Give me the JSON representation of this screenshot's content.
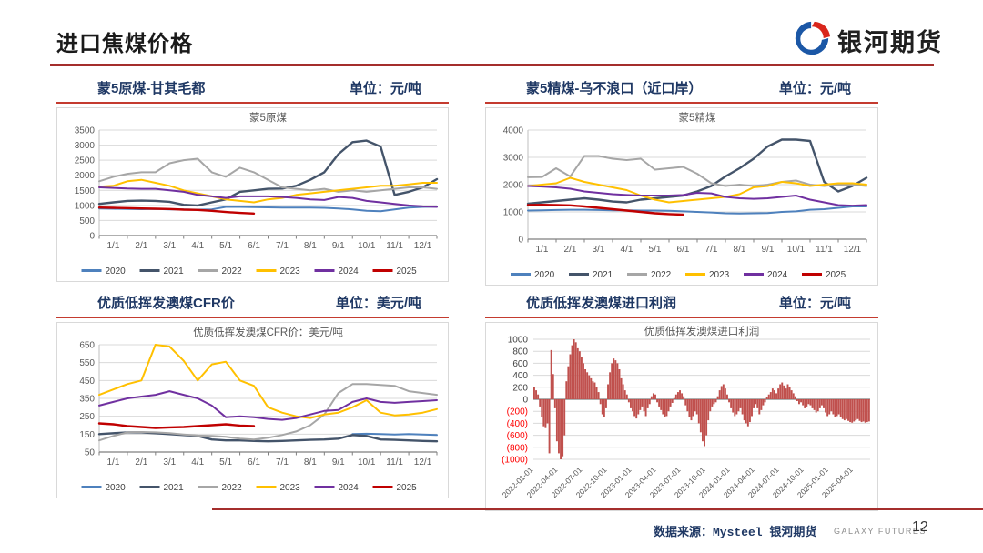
{
  "page": {
    "title": "进口焦煤价格",
    "logo_text": "银河期货",
    "footer_source": "数据来源：Mysteel 银河期货",
    "footer_brand": "GALAXY FUTURES",
    "page_number": "12"
  },
  "colors": {
    "title_rule": "#A42E2C",
    "header_text": "#1F3864",
    "header_underline": "#C43B2F",
    "grid": "#D9D9D9",
    "axis": "#7F7F7F",
    "tick_text": "#595959",
    "negative_label": "#FF0000",
    "bar": "#C0504D",
    "logo_blue": "#1B57A6",
    "logo_red": "#D9261C"
  },
  "charts": [
    {
      "header_title": "蒙5原煤-甘其毛都",
      "header_unit": "单位：元/吨",
      "chart_data": {
        "type": "line",
        "title": "蒙5原煤",
        "ylim": [
          0,
          3500
        ],
        "ytick_step": 500,
        "x": [
          "1/1",
          "1/15",
          "2/1",
          "2/15",
          "3/1",
          "3/15",
          "4/1",
          "4/15",
          "5/1",
          "5/15",
          "6/1",
          "6/15",
          "7/1",
          "7/15",
          "8/1",
          "8/15",
          "9/1",
          "9/15",
          "10/1",
          "10/15",
          "11/1",
          "11/15",
          "12/1",
          "12/15",
          "12/31"
        ],
        "x_ticks": [
          "1/1",
          "2/1",
          "3/1",
          "4/1",
          "5/1",
          "6/1",
          "7/1",
          "8/1",
          "9/1",
          "10/1",
          "11/1",
          "12/1"
        ],
        "series": [
          {
            "name": "2020",
            "color": "#4E81BD",
            "values": [
              900,
              890,
              880,
              875,
              880,
              870,
              865,
              860,
              870,
              950,
              950,
              945,
              935,
              930,
              930,
              925,
              920,
              900,
              870,
              820,
              810,
              870,
              930,
              950,
              960
            ]
          },
          {
            "name": "2021",
            "color": "#44546A",
            "values": [
              1050,
              1100,
              1150,
              1160,
              1150,
              1120,
              1020,
              1000,
              1100,
              1200,
              1450,
              1500,
              1550,
              1560,
              1650,
              1850,
              2100,
              2700,
              3100,
              3150,
              2950,
              1350,
              1450,
              1600,
              1870
            ]
          },
          {
            "name": "2022",
            "color": "#A6A6A6",
            "values": [
              1800,
              1950,
              2050,
              2100,
              2100,
              2400,
              2500,
              2550,
              2100,
              1950,
              2250,
              2100,
              1850,
              1600,
              1550,
              1500,
              1550,
              1450,
              1500,
              1450,
              1500,
              1550,
              1600,
              1600,
              1550
            ]
          },
          {
            "name": "2023",
            "color": "#FFC000",
            "values": [
              1620,
              1650,
              1800,
              1850,
              1750,
              1650,
              1500,
              1400,
              1300,
              1200,
              1150,
              1100,
              1200,
              1250,
              1350,
              1400,
              1450,
              1500,
              1550,
              1600,
              1650,
              1650,
              1700,
              1750,
              1750
            ]
          },
          {
            "name": "2024",
            "color": "#7030A0",
            "values": [
              1600,
              1580,
              1560,
              1550,
              1550,
              1500,
              1450,
              1350,
              1300,
              1250,
              1300,
              1300,
              1300,
              1280,
              1250,
              1200,
              1180,
              1280,
              1250,
              1150,
              1100,
              1050,
              1000,
              970,
              950
            ]
          },
          {
            "name": "2025",
            "color": "#C00000",
            "values": [
              930,
              920,
              910,
              900,
              890,
              880,
              860,
              850,
              820,
              780,
              750,
              730,
              null,
              null,
              null,
              null,
              null,
              null,
              null,
              null,
              null,
              null,
              null,
              null,
              null
            ]
          }
        ]
      }
    },
    {
      "header_title": "蒙5精煤-乌不浪口（近口岸）",
      "header_unit": "单位：元/吨",
      "chart_data": {
        "type": "line",
        "title": "蒙5精煤",
        "ylim": [
          0,
          4000
        ],
        "ytick_step": 1000,
        "x": [
          "1/1",
          "1/15",
          "2/1",
          "2/15",
          "3/1",
          "3/15",
          "4/1",
          "4/15",
          "5/1",
          "5/15",
          "6/1",
          "6/15",
          "7/1",
          "7/15",
          "8/1",
          "8/15",
          "9/1",
          "9/15",
          "10/1",
          "10/15",
          "11/1",
          "11/15",
          "12/1",
          "12/15",
          "12/31"
        ],
        "x_ticks": [
          "1/1",
          "2/1",
          "3/1",
          "4/1",
          "5/1",
          "6/1",
          "7/1",
          "8/1",
          "9/1",
          "10/1",
          "11/1",
          "12/1"
        ],
        "series": [
          {
            "name": "2020",
            "color": "#4E81BD",
            "values": [
              1050,
              1060,
              1070,
              1080,
              1080,
              1070,
              1060,
              1060,
              1050,
              1050,
              1040,
              1020,
              1000,
              980,
              950,
              940,
              950,
              960,
              1000,
              1020,
              1080,
              1100,
              1150,
              1200,
              1200
            ]
          },
          {
            "name": "2021",
            "color": "#44546A",
            "values": [
              1300,
              1350,
              1400,
              1450,
              1500,
              1450,
              1380,
              1350,
              1450,
              1500,
              1550,
              1600,
              1750,
              1950,
              2300,
              2600,
              2950,
              3400,
              3650,
              3650,
              3600,
              2100,
              1750,
              1950,
              2250
            ]
          },
          {
            "name": "2022",
            "color": "#A6A6A6",
            "values": [
              2270,
              2280,
              2600,
              2300,
              3050,
              3050,
              2950,
              2900,
              2950,
              2550,
              2600,
              2650,
              2400,
              2050,
              1950,
              2000,
              1950,
              2000,
              2100,
              2150,
              2000,
              1950,
              2000,
              2000,
              1950
            ]
          },
          {
            "name": "2023",
            "color": "#FFC000",
            "values": [
              1950,
              2000,
              2050,
              2250,
              2100,
              2000,
              1900,
              1800,
              1600,
              1450,
              1350,
              1400,
              1450,
              1500,
              1550,
              1650,
              1900,
              1950,
              2100,
              2050,
              1950,
              2000,
              2050,
              2050,
              2000
            ]
          },
          {
            "name": "2024",
            "color": "#7030A0",
            "values": [
              1950,
              1930,
              1900,
              1850,
              1750,
              1700,
              1650,
              1620,
              1600,
              1600,
              1600,
              1620,
              1700,
              1680,
              1550,
              1500,
              1480,
              1500,
              1550,
              1600,
              1450,
              1350,
              1250,
              1230,
              1250
            ]
          },
          {
            "name": "2025",
            "color": "#C00000",
            "values": [
              1250,
              1260,
              1250,
              1240,
              1200,
              1150,
              1100,
              1050,
              1000,
              950,
              920,
              900,
              null,
              null,
              null,
              null,
              null,
              null,
              null,
              null,
              null,
              null,
              null,
              null,
              null
            ]
          }
        ]
      }
    },
    {
      "header_title": "优质低挥发澳煤CFR价",
      "header_unit": "单位：美元/吨",
      "chart_data": {
        "type": "line",
        "title": "优质低挥发澳煤CFR价：美元/吨",
        "ylim": [
          50,
          650
        ],
        "ytick_step": 100,
        "x": [
          "1/1",
          "1/15",
          "2/1",
          "2/15",
          "3/1",
          "3/15",
          "4/1",
          "4/15",
          "5/1",
          "5/15",
          "6/1",
          "6/15",
          "7/1",
          "7/15",
          "8/1",
          "8/15",
          "9/1",
          "9/15",
          "10/1",
          "10/15",
          "11/1",
          "11/15",
          "12/1",
          "12/15",
          "12/31"
        ],
        "x_ticks": [
          "1/1",
          "2/1",
          "3/1",
          "4/1",
          "5/1",
          "6/1",
          "7/1",
          "8/1",
          "9/1",
          "10/1",
          "11/1",
          "12/1"
        ],
        "series": [
          {
            "name": "2020",
            "color": "#4E81BD",
            "values": [
              null,
              null,
              null,
              null,
              null,
              null,
              null,
              null,
              null,
              null,
              null,
              null,
              null,
              null,
              null,
              null,
              null,
              null,
              150,
              152,
              150,
              148,
              150,
              148,
              145
            ]
          },
          {
            "name": "2021",
            "color": "#44546A",
            "values": [
              150,
              155,
              160,
              160,
              155,
              150,
              145,
              140,
              120,
              115,
              115,
              112,
              110,
              112,
              115,
              118,
              120,
              125,
              145,
              140,
              120,
              118,
              115,
              112,
              110
            ]
          },
          {
            "name": "2022",
            "color": "#A6A6A6",
            "values": [
              115,
              140,
              160,
              162,
              160,
              155,
              148,
              142,
              140,
              135,
              125,
              120,
              130,
              145,
              165,
              200,
              260,
              380,
              430,
              430,
              425,
              420,
              390,
              380,
              370
            ]
          },
          {
            "name": "2023",
            "color": "#FFC000",
            "values": [
              370,
              400,
              430,
              450,
              650,
              640,
              560,
              450,
              540,
              555,
              450,
              420,
              300,
              270,
              250,
              240,
              260,
              270,
              300,
              340,
              270,
              255,
              260,
              270,
              290
            ]
          },
          {
            "name": "2024",
            "color": "#7030A0",
            "values": [
              310,
              330,
              350,
              360,
              370,
              390,
              370,
              350,
              310,
              245,
              250,
              245,
              235,
              230,
              240,
              260,
              280,
              285,
              330,
              350,
              330,
              325,
              330,
              335,
              340
            ]
          },
          {
            "name": "2025",
            "color": "#C00000",
            "values": [
              210,
              205,
              195,
              190,
              185,
              188,
              190,
              195,
              200,
              205,
              198,
              195,
              null,
              null,
              null,
              null,
              null,
              null,
              null,
              null,
              null,
              null,
              null,
              null,
              null
            ]
          }
        ]
      }
    },
    {
      "header_title": "优质低挥发澳煤进口利润",
      "header_unit": "单位：元/吨",
      "chart_data": {
        "type": "bar",
        "title": "优质低挥发澳煤进口利润",
        "ylim": [
          -1000,
          1000
        ],
        "ytick_step": 200,
        "bar_color": "#C0504D",
        "ticks_every": 13,
        "x_tick_labels": [
          "2022-01-01",
          "2022-04-01",
          "2022-07-01",
          "2022-10-01",
          "2023-01-01",
          "2023-04-01",
          "2023-07-01",
          "2023-10-01",
          "2024-01-01",
          "2024-04-01",
          "2024-07-01",
          "2024-10-01",
          "2025-01-01",
          "2025-04-01"
        ],
        "values": [
          200,
          150,
          80,
          -120,
          -300,
          -450,
          -480,
          -400,
          -900,
          820,
          420,
          -150,
          -700,
          -900,
          -1000,
          -950,
          -600,
          300,
          550,
          750,
          900,
          1000,
          950,
          850,
          800,
          700,
          600,
          500,
          450,
          400,
          350,
          300,
          280,
          200,
          120,
          -80,
          -250,
          -300,
          -150,
          250,
          450,
          600,
          680,
          650,
          600,
          500,
          350,
          250,
          150,
          80,
          -50,
          -150,
          -200,
          -280,
          -320,
          -250,
          -180,
          -120,
          -200,
          -280,
          -150,
          -80,
          50,
          100,
          80,
          -50,
          -120,
          -180,
          -250,
          -300,
          -280,
          -200,
          -120,
          -60,
          20,
          80,
          120,
          150,
          100,
          50,
          -100,
          -200,
          -300,
          -350,
          -280,
          -200,
          -250,
          -400,
          -550,
          -700,
          -780,
          -600,
          -350,
          -200,
          -120,
          -80,
          -50,
          50,
          150,
          220,
          250,
          180,
          80,
          -50,
          -150,
          -220,
          -280,
          -250,
          -200,
          -150,
          -250,
          -350,
          -400,
          -450,
          -380,
          -280,
          -150,
          -80,
          -150,
          -250,
          -180,
          -100,
          -50,
          30,
          80,
          120,
          180,
          150,
          100,
          180,
          250,
          280,
          230,
          180,
          250,
          200,
          150,
          100,
          50,
          -30,
          -80,
          -50,
          -100,
          -150,
          -120,
          -80,
          -100,
          -150,
          -180,
          -220,
          -200,
          -150,
          -100,
          -150,
          -220,
          -280,
          -250,
          -200,
          -250,
          -300,
          -280,
          -250,
          -300,
          -330,
          -350,
          -330,
          -360,
          -380,
          -390,
          -370,
          -350,
          -330,
          -360,
          -380,
          -370,
          -390,
          -380,
          -370
        ]
      }
    }
  ]
}
